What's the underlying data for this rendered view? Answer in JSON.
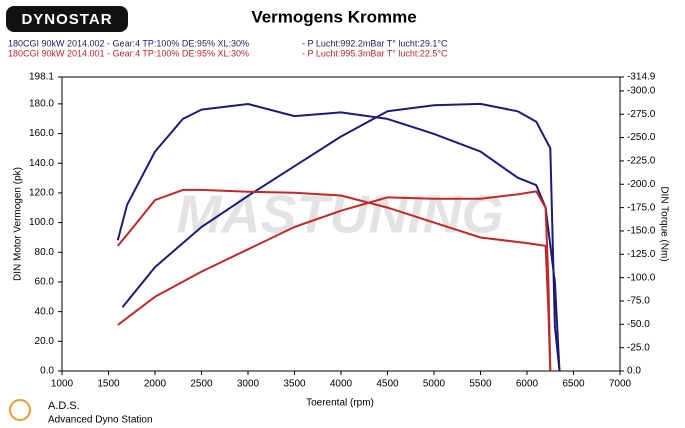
{
  "logo": "DYNOSTAR",
  "header": {
    "run1": "180CGI 90kW 2014.002 - Gear:4 TP:100% DE:95% XL:30%",
    "run1_conditions": "- P Lucht:992.2mBar T° lucht:29.1°C",
    "run2": "180CGI 90kW 2014.001 - Gear:4 TP:100% DE:95% XL:30%",
    "run2_conditions": "- P Lucht:995.3mBar T° lucht:22.5°C"
  },
  "footer": {
    "brand": "A.D.S.",
    "subtitle": "Advanced Dyno Station"
  },
  "chart_data": {
    "type": "line",
    "title": "Vermogens Kromme",
    "watermark": "MASTUNING",
    "x_label": "Toerental (rpm)",
    "y_label": "DIN Motor Vermogen (pk)",
    "y2_label": "DIN Torque (Nm)",
    "xlim": [
      1000,
      7000
    ],
    "xticks": [
      1000,
      1500,
      2000,
      2500,
      3000,
      3500,
      4000,
      4500,
      5000,
      5500,
      6000,
      6500,
      7000
    ],
    "ylim": [
      0,
      198.1
    ],
    "yticks": [
      {
        "value": 0,
        "label": "0.0"
      },
      {
        "value": 20,
        "label": "20.0"
      },
      {
        "value": 40,
        "label": "40.0"
      },
      {
        "value": 60,
        "label": "60.0"
      },
      {
        "value": 80,
        "label": "80.0"
      },
      {
        "value": 100,
        "label": "100.0"
      },
      {
        "value": 120,
        "label": "120.0"
      },
      {
        "value": 140,
        "label": "140.0"
      },
      {
        "value": 160,
        "label": "160.0"
      },
      {
        "value": 180,
        "label": "180.0"
      },
      198.1
    ],
    "y2lim": [
      0,
      -314.9
    ],
    "y2ticks": [
      {
        "value": 0,
        "label": "0.0"
      },
      {
        "value": -25,
        "label": "-25.0"
      },
      {
        "value": -50,
        "label": "-50.0"
      },
      {
        "value": -75,
        "label": "-75.0"
      },
      {
        "value": -100,
        "label": "-100.0"
      },
      {
        "value": -125,
        "label": "-125.0"
      },
      {
        "value": -150,
        "label": "-150.0"
      },
      {
        "value": -175,
        "label": "-175.0"
      },
      {
        "value": -200,
        "label": "-200.0"
      },
      {
        "value": -225,
        "label": "-225.0"
      },
      {
        "value": -250,
        "label": "-250.0"
      },
      {
        "value": -275,
        "label": "-275.0"
      },
      {
        "value": -300,
        "label": "-300.0"
      },
      -314.9
    ],
    "series": [
      {
        "color": "#1c1c78",
        "x": [
          1650,
          2000,
          2500,
          3000,
          3500,
          4000,
          4500,
          5000,
          5500,
          5900,
          6100,
          6250,
          6300,
          6350
        ],
        "values": [
          43,
          70,
          97,
          118,
          138,
          158,
          175,
          179,
          180,
          175,
          168,
          150,
          30,
          0
        ]
      },
      {
        "color": "#1c1c78",
        "axis": "y2",
        "x": [
          1600,
          1700,
          2000,
          2300,
          2500,
          3000,
          3500,
          4000,
          4500,
          5000,
          5500,
          5900,
          6100,
          6200,
          6300,
          6350
        ],
        "values": [
          -140,
          -178,
          -235,
          -270,
          -280,
          -286,
          -273,
          -277,
          -270,
          -254,
          -235,
          -207,
          -199,
          -175,
          -95,
          0
        ]
      },
      {
        "color": "#c0282a",
        "x": [
          1600,
          2000,
          2500,
          3000,
          3500,
          4000,
          4500,
          5000,
          5500,
          5900,
          6100,
          6200,
          6230,
          6250
        ],
        "values": [
          31,
          50,
          67,
          82,
          97,
          108,
          117,
          116,
          116,
          119,
          121,
          110,
          60,
          0
        ]
      },
      {
        "color": "#c0282a",
        "axis": "y2",
        "x": [
          1600,
          1700,
          2000,
          2300,
          2500,
          3000,
          3500,
          4000,
          4500,
          5000,
          5500,
          6000,
          6200,
          6230,
          6250
        ],
        "values": [
          -134,
          -146,
          -183,
          -194,
          -194,
          -192,
          -191,
          -188,
          -175,
          -159,
          -143,
          -137,
          -134,
          -64,
          0
        ]
      }
    ]
  }
}
